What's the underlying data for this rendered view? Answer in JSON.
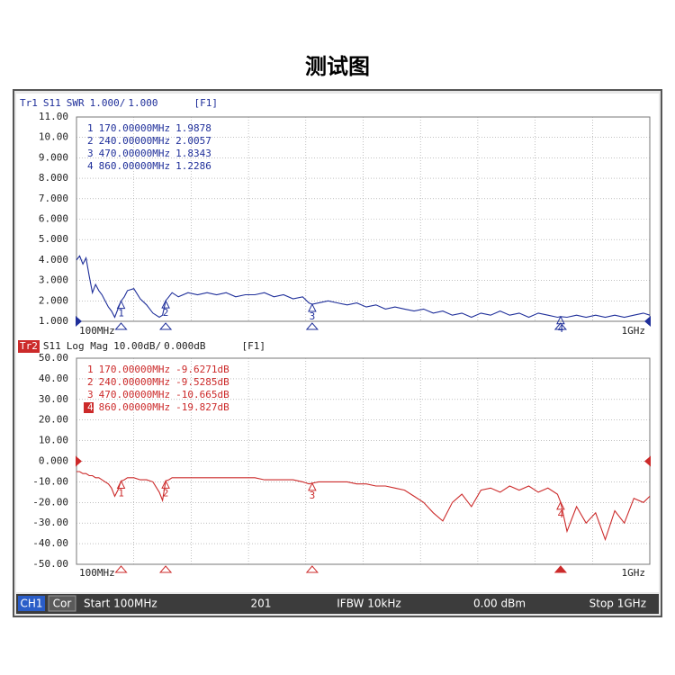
{
  "title": "测试图",
  "chart_data": [
    {
      "type": "line",
      "trace": "Tr1",
      "parameter": "S11",
      "format": "SWR",
      "scale": "1.000/",
      "reference": {
        "value": 1,
        "label": "1.000"
      },
      "channel_tag": "[F1]",
      "color": "#1f2f9a",
      "xlim": [
        100,
        1000
      ],
      "xticks": [
        {
          "value": 100,
          "label": "100MHz"
        },
        {
          "value": 1000,
          "label": "1GHz"
        }
      ],
      "ylim": [
        1,
        11
      ],
      "yticks": [
        {
          "value": 11,
          "label": "11.00"
        },
        {
          "value": 10,
          "label": "10.00"
        },
        {
          "value": 9,
          "label": "9.000"
        },
        {
          "value": 8,
          "label": "8.000"
        },
        {
          "value": 7,
          "label": "7.000"
        },
        {
          "value": 6,
          "label": "6.000"
        },
        {
          "value": 5,
          "label": "5.000"
        },
        {
          "value": 4,
          "label": "4.000"
        },
        {
          "value": 3,
          "label": "3.000"
        },
        {
          "value": 2,
          "label": "2.000"
        },
        {
          "value": 1,
          "label": "1.000"
        }
      ],
      "grid": true,
      "x": [
        100,
        105,
        110,
        115,
        120,
        125,
        130,
        135,
        140,
        145,
        150,
        155,
        160,
        165,
        170,
        175,
        180,
        190,
        200,
        210,
        220,
        230,
        235,
        240,
        245,
        250,
        260,
        275,
        290,
        305,
        320,
        335,
        350,
        365,
        380,
        395,
        410,
        425,
        440,
        455,
        465,
        470,
        480,
        495,
        510,
        525,
        540,
        555,
        570,
        585,
        600,
        615,
        630,
        645,
        660,
        675,
        690,
        705,
        720,
        735,
        750,
        765,
        780,
        795,
        810,
        825,
        840,
        855,
        860,
        870,
        885,
        900,
        915,
        930,
        945,
        960,
        975,
        990,
        1000
      ],
      "values": [
        4.0,
        4.2,
        3.8,
        4.1,
        3.2,
        2.4,
        2.8,
        2.5,
        2.3,
        2.0,
        1.7,
        1.5,
        1.2,
        1.6,
        1.9878,
        2.2,
        2.5,
        2.6,
        2.1,
        1.8,
        1.4,
        1.2,
        1.3,
        2.0057,
        2.2,
        2.4,
        2.2,
        2.4,
        2.3,
        2.4,
        2.3,
        2.4,
        2.2,
        2.3,
        2.3,
        2.4,
        2.2,
        2.3,
        2.1,
        2.2,
        1.9,
        1.8343,
        1.9,
        2.0,
        1.9,
        1.8,
        1.9,
        1.7,
        1.8,
        1.6,
        1.7,
        1.6,
        1.5,
        1.6,
        1.4,
        1.5,
        1.3,
        1.4,
        1.2,
        1.4,
        1.3,
        1.5,
        1.3,
        1.4,
        1.2,
        1.4,
        1.3,
        1.2,
        1.2286,
        1.2,
        1.3,
        1.2,
        1.3,
        1.2,
        1.3,
        1.2,
        1.3,
        1.4,
        1.3
      ],
      "markers": [
        {
          "id": 1,
          "x": 170,
          "x_label": "170.00000MHz",
          "y": 1.9878
        },
        {
          "id": 2,
          "x": 240,
          "x_label": "240.00000MHz",
          "y": 2.0057
        },
        {
          "id": 3,
          "x": 470,
          "x_label": "470.00000MHz",
          "y": 1.8343
        },
        {
          "id": 4,
          "x": 860,
          "x_label": "860.00000MHz",
          "y": 1.2286
        }
      ]
    },
    {
      "type": "line",
      "trace": "Tr2",
      "parameter": "S11",
      "format": "Log Mag",
      "scale": "10.00dB/",
      "reference": {
        "value": 0,
        "label": "0.000dB"
      },
      "channel_tag": "[F1]",
      "color": "#cc2a2a",
      "xlim": [
        100,
        1000
      ],
      "xticks": [
        {
          "value": 100,
          "label": "100MHz"
        },
        {
          "value": 1000,
          "label": "1GHz"
        }
      ],
      "ylim": [
        -50,
        50
      ],
      "yticks": [
        {
          "value": 50,
          "label": "50.00"
        },
        {
          "value": 40,
          "label": "40.00"
        },
        {
          "value": 30,
          "label": "30.00"
        },
        {
          "value": 20,
          "label": "20.00"
        },
        {
          "value": 10,
          "label": "10.00"
        },
        {
          "value": 0,
          "label": "0.000"
        },
        {
          "value": -10,
          "label": "-10.00"
        },
        {
          "value": -20,
          "label": "-20.00"
        },
        {
          "value": -30,
          "label": "-30.00"
        },
        {
          "value": -40,
          "label": "-40.00"
        },
        {
          "value": -50,
          "label": "-50.00"
        }
      ],
      "grid": true,
      "x": [
        100,
        105,
        110,
        115,
        120,
        125,
        130,
        135,
        140,
        145,
        150,
        155,
        160,
        165,
        170,
        175,
        180,
        190,
        200,
        210,
        220,
        230,
        235,
        240,
        245,
        250,
        260,
        275,
        290,
        305,
        320,
        335,
        350,
        365,
        380,
        395,
        410,
        425,
        440,
        455,
        465,
        470,
        480,
        495,
        510,
        525,
        540,
        555,
        570,
        585,
        600,
        615,
        630,
        645,
        660,
        675,
        690,
        705,
        720,
        735,
        750,
        765,
        780,
        795,
        810,
        825,
        840,
        855,
        860,
        870,
        885,
        900,
        915,
        930,
        945,
        960,
        975,
        990,
        1000
      ],
      "values": [
        -5,
        -5,
        -6,
        -6,
        -7,
        -7,
        -8,
        -8,
        -9,
        -10,
        -11,
        -13,
        -17,
        -14,
        -9.6271,
        -9,
        -8,
        -8,
        -9,
        -9,
        -10,
        -15,
        -19,
        -9.5285,
        -9,
        -8,
        -8,
        -8,
        -8,
        -8,
        -8,
        -8,
        -8,
        -8,
        -8,
        -9,
        -9,
        -9,
        -9,
        -10,
        -11,
        -10.665,
        -10,
        -10,
        -10,
        -10,
        -11,
        -11,
        -12,
        -12,
        -13,
        -14,
        -17,
        -20,
        -25,
        -29,
        -20,
        -16,
        -22,
        -14,
        -13,
        -15,
        -12,
        -14,
        -12,
        -15,
        -13,
        -16,
        -19.827,
        -34,
        -22,
        -30,
        -25,
        -38,
        -24,
        -30,
        -18,
        -20,
        -17
      ],
      "markers": [
        {
          "id": 1,
          "x": 170,
          "x_label": "170.00000MHz",
          "y": -9.6271,
          "y_label": "-9.6271dB"
        },
        {
          "id": 2,
          "x": 240,
          "x_label": "240.00000MHz",
          "y": -9.5285,
          "y_label": "-9.5285dB"
        },
        {
          "id": 3,
          "x": 470,
          "x_label": "470.00000MHz",
          "y": -10.665,
          "y_label": "-10.665dB"
        },
        {
          "id": 4,
          "x": 860,
          "x_label": "860.00000MHz",
          "y": -19.827,
          "y_label": "-19.827dB",
          "active": true
        }
      ]
    }
  ],
  "status_bar": {
    "channel": "CH1",
    "correction": "Cor",
    "start": "Start 100MHz",
    "points": "201",
    "ifbw": "IFBW 10kHz",
    "power": "0.00 dBm",
    "stop": "Stop 1GHz"
  }
}
